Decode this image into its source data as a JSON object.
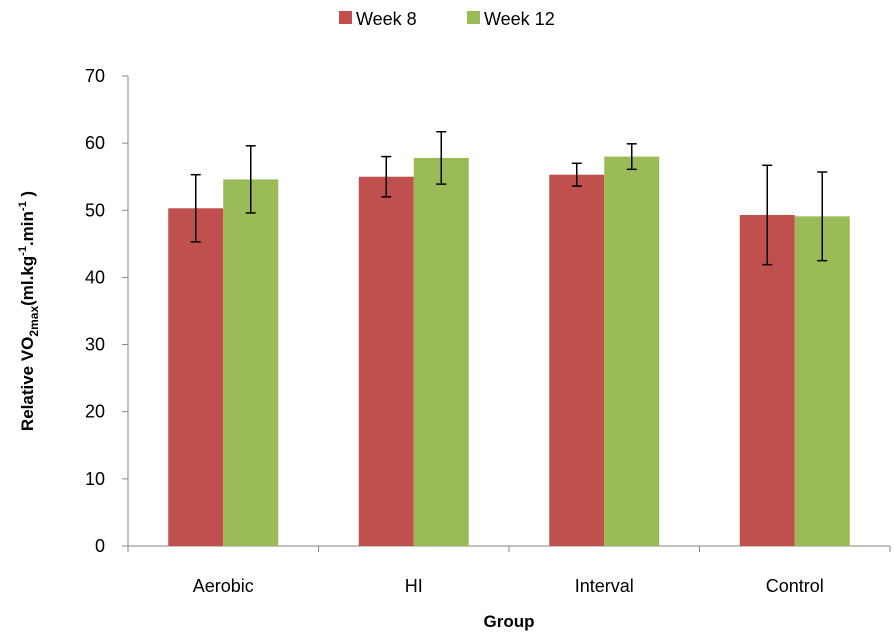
{
  "chart_data": {
    "type": "bar",
    "title": "",
    "xlabel": "Group",
    "ylabel": {
      "prefix": "Relative VO",
      "sub1": "2max",
      "mid1": "(ml.kg",
      "sup1": "-1",
      "mid2": ".min",
      "sup2": "-1",
      "suffix": " )"
    },
    "categories": [
      "Aerobic",
      "HI",
      "Interval",
      "Control"
    ],
    "ylim": [
      0,
      70
    ],
    "yticks": [
      0,
      10,
      20,
      30,
      40,
      50,
      60,
      70
    ],
    "grid": false,
    "legend_position": "top",
    "series": [
      {
        "name": "Week 8",
        "color": "#C0504D",
        "values": [
          50.3,
          55.0,
          55.3,
          49.3
        ],
        "error": [
          5.0,
          3.0,
          1.7,
          7.4
        ]
      },
      {
        "name": "Week 12",
        "color": "#9BBB59",
        "values": [
          54.6,
          57.8,
          58.0,
          49.1
        ],
        "error": [
          5.0,
          3.9,
          1.9,
          6.6
        ]
      }
    ]
  }
}
